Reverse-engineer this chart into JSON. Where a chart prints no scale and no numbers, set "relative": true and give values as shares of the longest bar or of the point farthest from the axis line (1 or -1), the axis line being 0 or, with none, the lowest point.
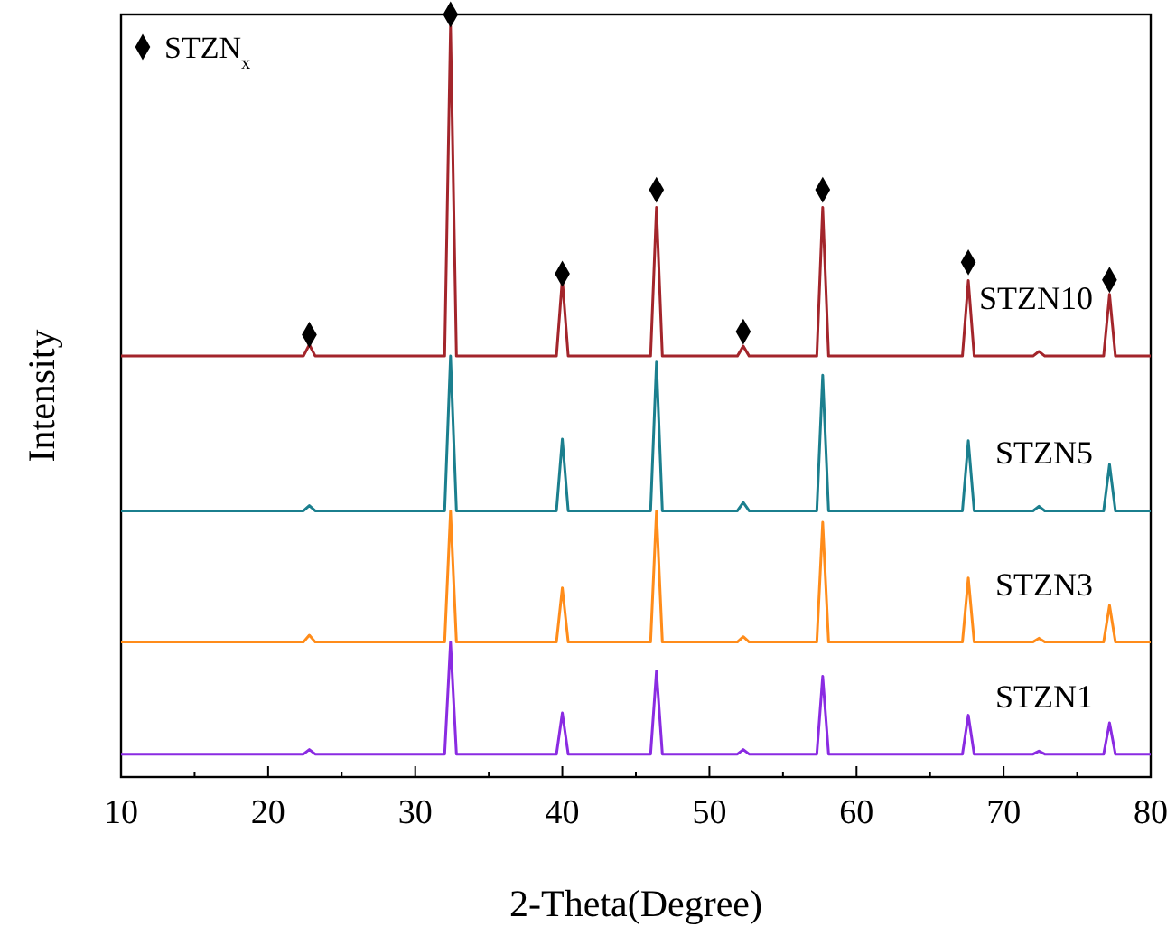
{
  "chart_data": {
    "type": "line",
    "relative": true,
    "xlabel": "2-Theta(Degree)",
    "ylabel": "Intensity",
    "xlim": [
      10,
      80
    ],
    "xticks": [
      10,
      20,
      30,
      40,
      50,
      60,
      70,
      80
    ],
    "legend": "top left",
    "x": [
      10,
      22.4,
      22.8,
      23.2,
      32.0,
      32.4,
      32.8,
      39.6,
      40.0,
      40.4,
      46.0,
      46.4,
      46.8,
      51.9,
      52.3,
      52.7,
      57.3,
      57.7,
      58.1,
      67.2,
      67.6,
      68.0,
      72.0,
      72.4,
      72.8,
      76.8,
      77.2,
      77.6,
      80
    ],
    "series": [
      {
        "name": "STZN10",
        "color": "#a3252b",
        "values": [
          0.552,
          0.552,
          0.567,
          0.552,
          0.552,
          0.985,
          0.552,
          0.552,
          0.653,
          0.552,
          0.552,
          0.747,
          0.552,
          0.552,
          0.565,
          0.552,
          0.552,
          0.747,
          0.552,
          0.552,
          0.651,
          0.552,
          0.552,
          0.558,
          0.552,
          0.552,
          0.633,
          0.552,
          0.552
        ]
      },
      {
        "name": "STZN5",
        "color": "#1b7f8e",
        "values": [
          0.349,
          0.349,
          0.356,
          0.349,
          0.349,
          0.552,
          0.349,
          0.349,
          0.443,
          0.349,
          0.349,
          0.544,
          0.349,
          0.349,
          0.36,
          0.349,
          0.349,
          0.527,
          0.349,
          0.349,
          0.441,
          0.349,
          0.349,
          0.355,
          0.349,
          0.349,
          0.41,
          0.349,
          0.349
        ]
      },
      {
        "name": "STZN3",
        "color": "#ff8c1a",
        "values": [
          0.177,
          0.177,
          0.186,
          0.177,
          0.177,
          0.349,
          0.177,
          0.177,
          0.248,
          0.177,
          0.177,
          0.349,
          0.177,
          0.177,
          0.184,
          0.177,
          0.177,
          0.334,
          0.177,
          0.177,
          0.261,
          0.177,
          0.177,
          0.182,
          0.177,
          0.177,
          0.225,
          0.177,
          0.177
        ]
      },
      {
        "name": "STZN1",
        "color": "#8a2be2",
        "values": [
          0.03,
          0.03,
          0.036,
          0.03,
          0.03,
          0.177,
          0.03,
          0.03,
          0.084,
          0.03,
          0.03,
          0.139,
          0.03,
          0.03,
          0.036,
          0.03,
          0.03,
          0.132,
          0.03,
          0.03,
          0.081,
          0.03,
          0.03,
          0.034,
          0.03,
          0.03,
          0.071,
          0.03,
          0.03
        ]
      },
      {
        "name": "STZN$_{x}$",
        "type": "scatter",
        "marker": "diamond",
        "color": "#000000",
        "x": [
          22.8,
          32.4,
          40,
          46.4,
          52.3,
          57.7,
          67.6,
          77.2
        ],
        "values": [
          0.58,
          1,
          0.66,
          0.77,
          0.584,
          0.77,
          0.675,
          0.652
        ]
      }
    ]
  }
}
